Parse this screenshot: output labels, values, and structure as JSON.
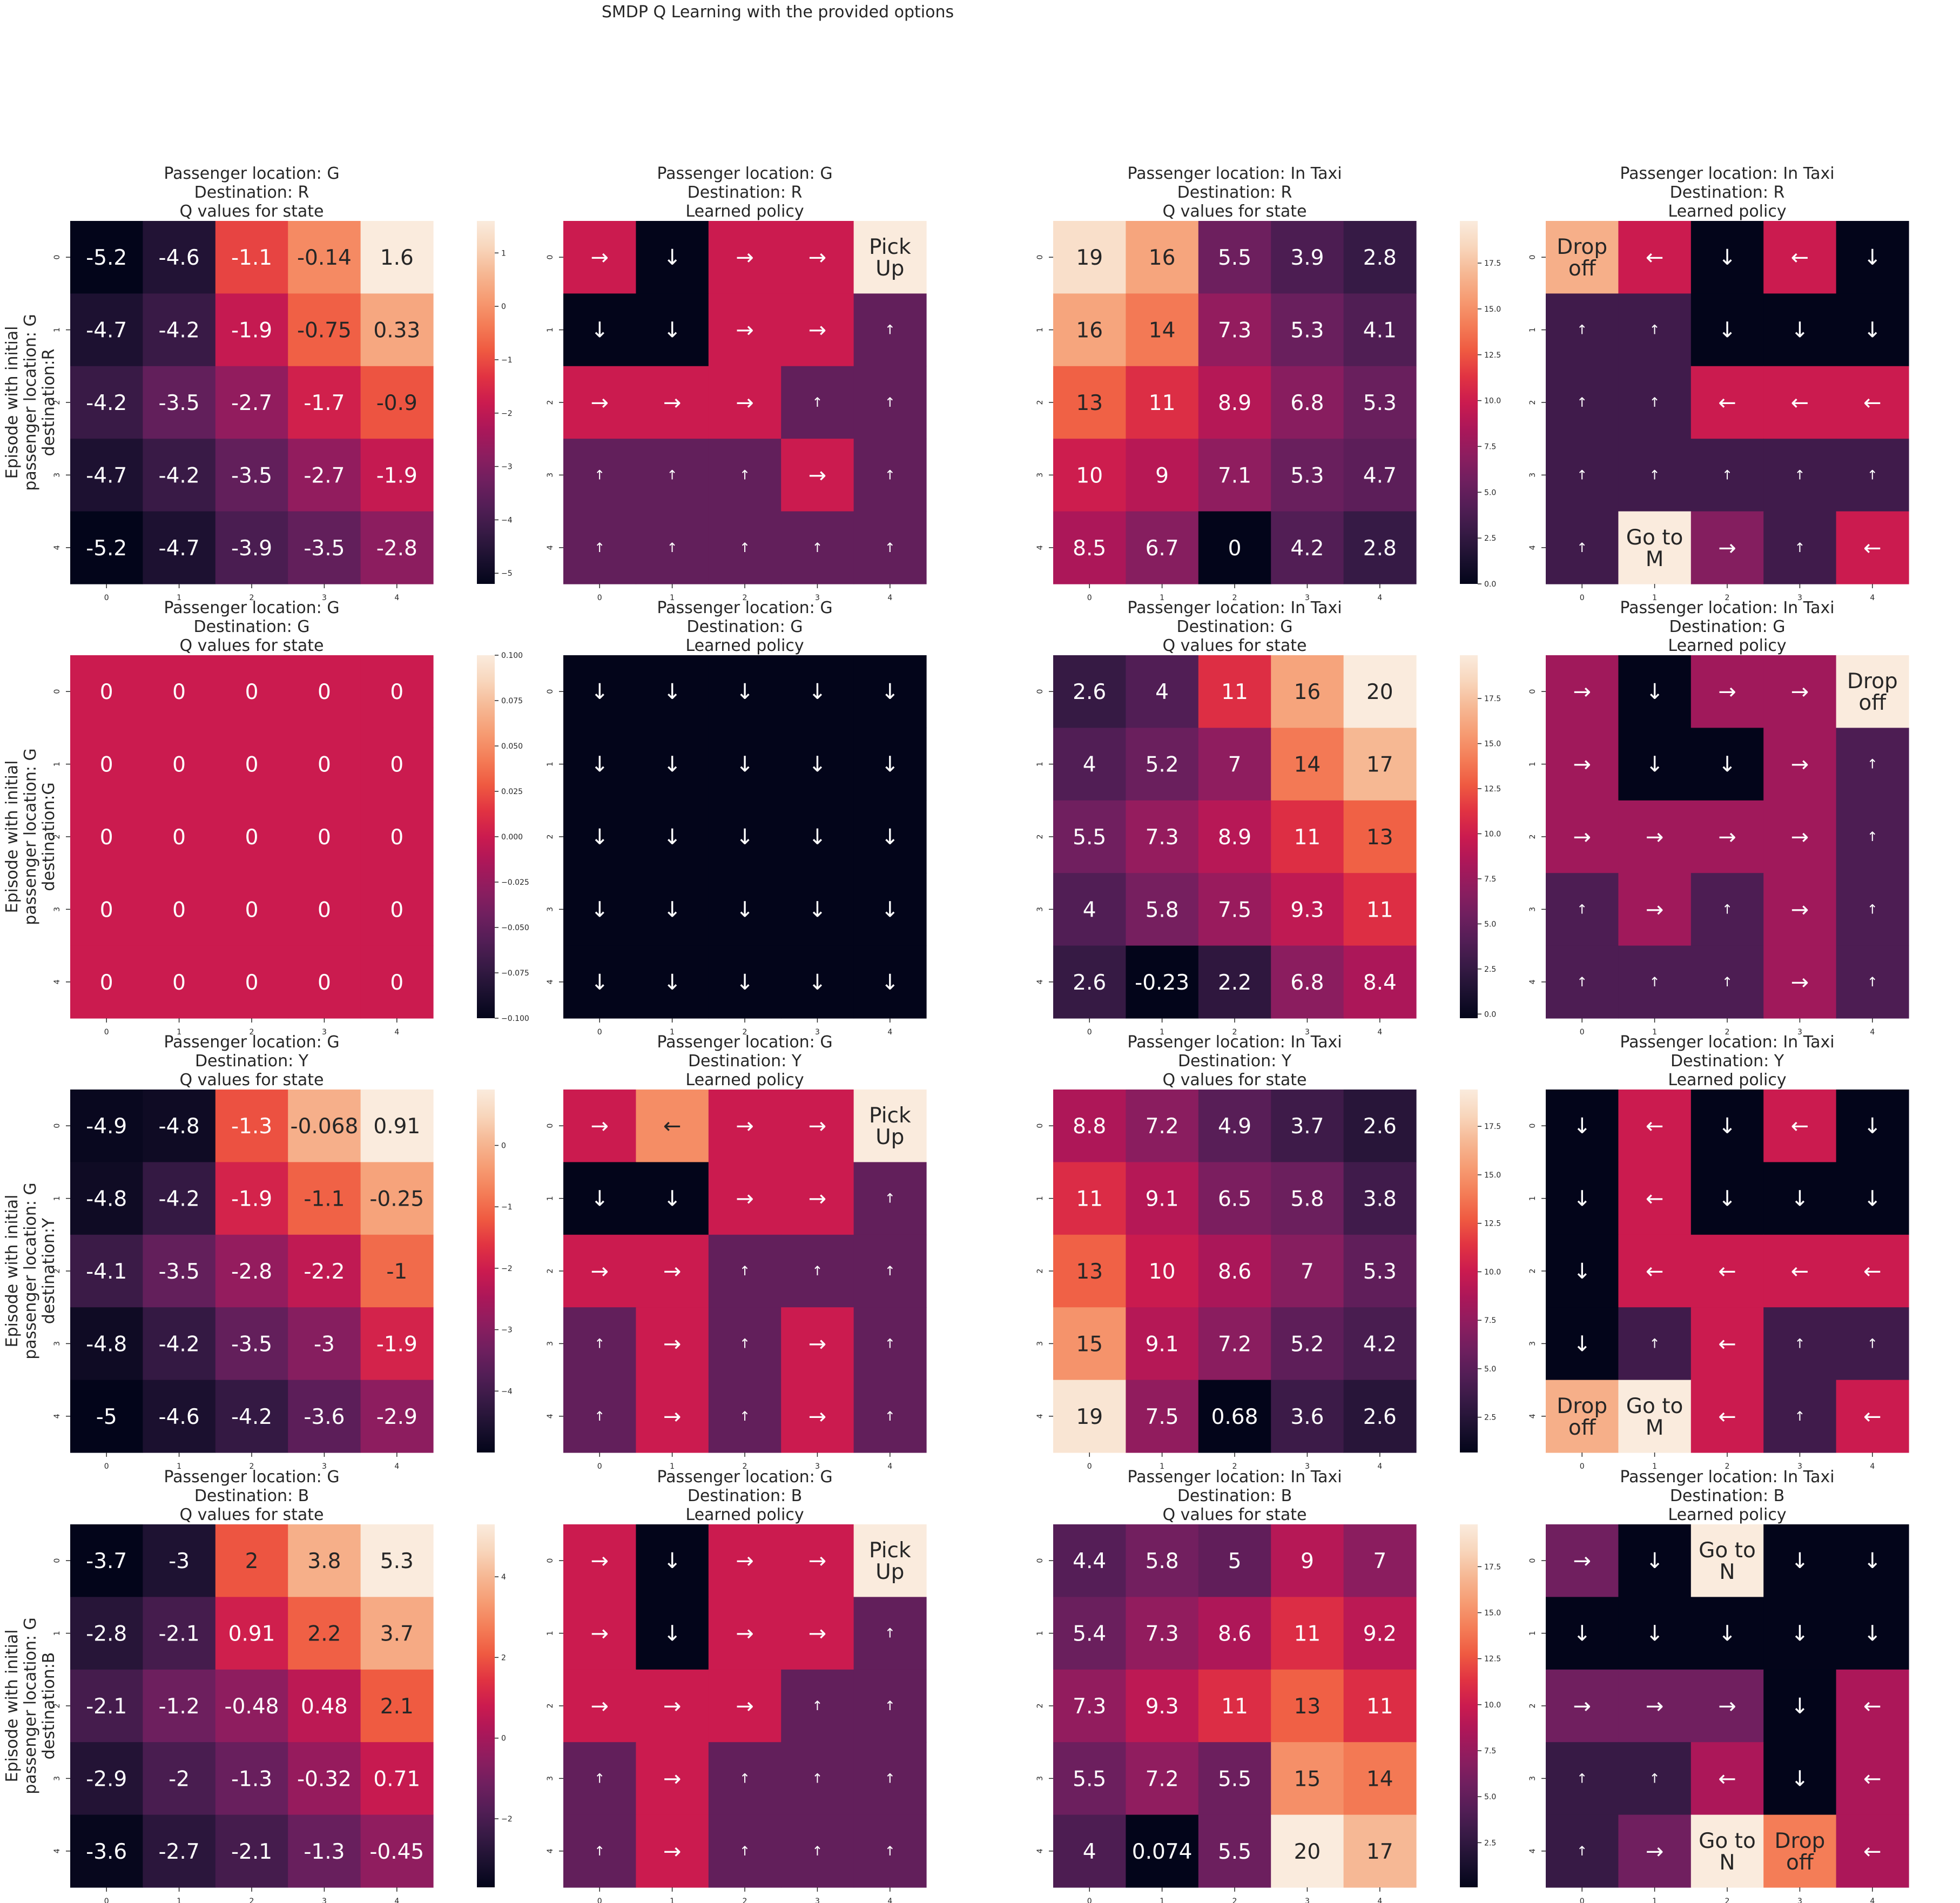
{
  "figure": {
    "suptitle": "SMDP Q Learning with the provided options",
    "row_labels": [
      [
        "Episode with initial",
        "passenger location: G",
        "destination:R"
      ],
      [
        "Episode with initial",
        "passenger location: G",
        "destination:G"
      ],
      [
        "Episode with initial",
        "passenger location: G",
        "destination:Y"
      ],
      [
        "Episode with initial",
        "passenger location: G",
        "destination:B"
      ]
    ],
    "tick_labels": [
      "0",
      "1",
      "2",
      "3",
      "4"
    ],
    "action_glyphs": {
      "0": "↓",
      "1": "↑",
      "2": "→",
      "3": "←",
      "4": [
        "Pick",
        "Up"
      ],
      "5": [
        "Drop",
        "off"
      ],
      "6": [
        "Go to",
        "M"
      ],
      "7": [
        "Go to",
        "N"
      ]
    },
    "colormap": "rocket",
    "text_colors": {
      "on_dark": "#ffffff",
      "on_light": "#262626"
    }
  },
  "chart_data": [
    {
      "type": "heatmap",
      "title": [
        "Passenger location: G",
        "Destination: R",
        "Q values for state"
      ],
      "values": [
        [
          -5.2,
          -4.6,
          -1.1,
          -0.14,
          1.6
        ],
        [
          -4.7,
          -4.2,
          -1.9,
          -0.75,
          0.33
        ],
        [
          -4.2,
          -3.5,
          -2.7,
          -1.7,
          -0.9
        ],
        [
          -4.7,
          -4.2,
          -3.5,
          -2.7,
          -1.9
        ],
        [
          -5.2,
          -4.7,
          -3.9,
          -3.5,
          -2.8
        ]
      ],
      "annotations": [
        [
          "-5.2",
          "-4.6",
          "-1.1",
          "-0.14",
          "1.6"
        ],
        [
          "-4.7",
          "-4.2",
          "-1.9",
          "-0.75",
          "0.33"
        ],
        [
          "-4.2",
          "-3.5",
          "-2.7",
          "-1.7",
          "-0.9"
        ],
        [
          "-4.7",
          "-4.2",
          "-3.5",
          "-2.7",
          "-1.9"
        ],
        [
          "-5.2",
          "-4.7",
          "-3.9",
          "-3.5",
          "-2.8"
        ]
      ],
      "vmin": -5.2,
      "vmax": 1.6,
      "colorbar_ticks": [
        1,
        0,
        -1,
        -2,
        -3,
        -4,
        -5
      ],
      "colorbar_labels": [
        "1",
        "0",
        "−1",
        "−2",
        "−3",
        "−4",
        "−5"
      ]
    },
    {
      "type": "heatmap",
      "title": [
        "Passenger location: G",
        "Destination: R",
        "Learned policy"
      ],
      "values": [
        [
          2,
          0,
          2,
          2,
          4
        ],
        [
          0,
          0,
          2,
          2,
          1
        ],
        [
          2,
          2,
          2,
          1,
          1
        ],
        [
          1,
          1,
          1,
          2,
          1
        ],
        [
          1,
          1,
          1,
          1,
          1
        ]
      ],
      "vmin": 0,
      "vmax": 4
    },
    {
      "type": "heatmap",
      "title": [
        "Passenger location: In Taxi",
        "Destination: R",
        "Q values for state"
      ],
      "values": [
        [
          19,
          16,
          5.5,
          3.9,
          2.8
        ],
        [
          16,
          14,
          7.3,
          5.3,
          4.1
        ],
        [
          13,
          11,
          8.9,
          6.8,
          5.3
        ],
        [
          10,
          9,
          7.1,
          5.3,
          4.7
        ],
        [
          8.5,
          6.7,
          0,
          4.2,
          2.8
        ]
      ],
      "annotations": [
        [
          "19",
          "16",
          "5.5",
          "3.9",
          "2.8"
        ],
        [
          "16",
          "14",
          "7.3",
          "5.3",
          "4.1"
        ],
        [
          "13",
          "11",
          "8.9",
          "6.8",
          "5.3"
        ],
        [
          "10",
          "9",
          "7.1",
          "5.3",
          "4.7"
        ],
        [
          "8.5",
          "6.7",
          "0",
          "4.2",
          "2.8"
        ]
      ],
      "vmin": 0,
      "vmax": 19.8,
      "colorbar_ticks": [
        17.5,
        15,
        12.5,
        10,
        7.5,
        5,
        2.5,
        0
      ],
      "colorbar_labels": [
        "17.5",
        "15.0",
        "12.5",
        "10.0",
        "7.5",
        "5.0",
        "2.5",
        "0.0"
      ]
    },
    {
      "type": "heatmap",
      "title": [
        "Passenger location: In Taxi",
        "Destination: R",
        "Learned policy"
      ],
      "values": [
        [
          5,
          3,
          0,
          3,
          0
        ],
        [
          1,
          1,
          0,
          0,
          0
        ],
        [
          1,
          1,
          3,
          3,
          3
        ],
        [
          1,
          1,
          1,
          1,
          1
        ],
        [
          1,
          6,
          2,
          1,
          3
        ]
      ],
      "vmin": 0,
      "vmax": 6
    },
    {
      "type": "heatmap",
      "title": [
        "Passenger location: G",
        "Destination: G",
        "Q values for state"
      ],
      "values": [
        [
          0,
          0,
          0,
          0,
          0
        ],
        [
          0,
          0,
          0,
          0,
          0
        ],
        [
          0,
          0,
          0,
          0,
          0
        ],
        [
          0,
          0,
          0,
          0,
          0
        ],
        [
          0,
          0,
          0,
          0,
          0
        ]
      ],
      "annotations": [
        [
          "0",
          "0",
          "0",
          "0",
          "0"
        ],
        [
          "0",
          "0",
          "0",
          "0",
          "0"
        ],
        [
          "0",
          "0",
          "0",
          "0",
          "0"
        ],
        [
          "0",
          "0",
          "0",
          "0",
          "0"
        ],
        [
          "0",
          "0",
          "0",
          "0",
          "0"
        ]
      ],
      "vmin": -0.1,
      "vmax": 0.1,
      "colorbar_ticks": [
        0.1,
        0.075,
        0.05,
        0.025,
        0,
        -0.025,
        -0.05,
        -0.075,
        -0.1
      ],
      "colorbar_labels": [
        "0.100",
        "0.075",
        "0.050",
        "0.025",
        "0.000",
        "−0.025",
        "−0.050",
        "−0.075",
        "−0.100"
      ]
    },
    {
      "type": "heatmap",
      "title": [
        "Passenger location: G",
        "Destination: G",
        "Learned policy"
      ],
      "values": [
        [
          0,
          0,
          0,
          0,
          0
        ],
        [
          0,
          0,
          0,
          0,
          0
        ],
        [
          0,
          0,
          0,
          0,
          0
        ],
        [
          0,
          0,
          0,
          0,
          0
        ],
        [
          0,
          0,
          0,
          0,
          0
        ]
      ],
      "vmin": 0,
      "vmax": 0
    },
    {
      "type": "heatmap",
      "title": [
        "Passenger location: In Taxi",
        "Destination: G",
        "Q values for state"
      ],
      "values": [
        [
          2.6,
          4,
          11,
          16,
          20
        ],
        [
          4,
          5.2,
          7,
          14,
          17
        ],
        [
          5.5,
          7.3,
          8.9,
          11,
          13
        ],
        [
          4,
          5.8,
          7.5,
          9.3,
          11
        ],
        [
          2.6,
          -0.23,
          2.2,
          6.8,
          8.4
        ]
      ],
      "annotations": [
        [
          "2.6",
          "4",
          "11",
          "16",
          "20"
        ],
        [
          "4",
          "5.2",
          "7",
          "14",
          "17"
        ],
        [
          "5.5",
          "7.3",
          "8.9",
          "11",
          "13"
        ],
        [
          "4",
          "5.8",
          "7.5",
          "9.3",
          "11"
        ],
        [
          "2.6",
          "-0.23",
          "2.2",
          "6.8",
          "8.4"
        ]
      ],
      "vmin": -0.23,
      "vmax": 19.9,
      "colorbar_ticks": [
        17.5,
        15,
        12.5,
        10,
        7.5,
        5,
        2.5,
        0
      ],
      "colorbar_labels": [
        "17.5",
        "15.0",
        "12.5",
        "10.0",
        "7.5",
        "5.0",
        "2.5",
        "0.0"
      ]
    },
    {
      "type": "heatmap",
      "title": [
        "Passenger location: In Taxi",
        "Destination: G",
        "Learned policy"
      ],
      "values": [
        [
          2,
          0,
          2,
          2,
          5
        ],
        [
          2,
          0,
          0,
          2,
          1
        ],
        [
          2,
          2,
          2,
          2,
          1
        ],
        [
          1,
          2,
          1,
          2,
          1
        ],
        [
          1,
          1,
          1,
          2,
          1
        ]
      ],
      "vmin": 0,
      "vmax": 5
    },
    {
      "type": "heatmap",
      "title": [
        "Passenger location: G",
        "Destination: Y",
        "Q values for state"
      ],
      "values": [
        [
          -4.9,
          -4.8,
          -1.3,
          -0.068,
          0.91
        ],
        [
          -4.8,
          -4.2,
          -1.9,
          -1.1,
          -0.25
        ],
        [
          -4.1,
          -3.5,
          -2.8,
          -2.2,
          -1
        ],
        [
          -4.8,
          -4.2,
          -3.5,
          -3,
          -1.9
        ],
        [
          -5,
          -4.6,
          -4.2,
          -3.6,
          -2.9
        ]
      ],
      "annotations": [
        [
          "-4.9",
          "-4.8",
          "-1.3",
          "-0.068",
          "0.91"
        ],
        [
          "-4.8",
          "-4.2",
          "-1.9",
          "-1.1",
          "-0.25"
        ],
        [
          "-4.1",
          "-3.5",
          "-2.8",
          "-2.2",
          "-1"
        ],
        [
          "-4.8",
          "-4.2",
          "-3.5",
          "-3",
          "-1.9"
        ],
        [
          "-5",
          "-4.6",
          "-4.2",
          "-3.6",
          "-2.9"
        ]
      ],
      "vmin": -5.0,
      "vmax": 0.91,
      "colorbar_ticks": [
        0,
        -1,
        -2,
        -3,
        -4
      ],
      "colorbar_labels": [
        "0",
        "−1",
        "−2",
        "−3",
        "−4"
      ]
    },
    {
      "type": "heatmap",
      "title": [
        "Passenger location: G",
        "Destination: Y",
        "Learned policy"
      ],
      "values": [
        [
          2,
          3,
          2,
          2,
          4
        ],
        [
          0,
          0,
          2,
          2,
          1
        ],
        [
          2,
          2,
          1,
          1,
          1
        ],
        [
          1,
          2,
          1,
          2,
          1
        ],
        [
          1,
          2,
          1,
          2,
          1
        ]
      ],
      "vmin": 0,
      "vmax": 4
    },
    {
      "type": "heatmap",
      "title": [
        "Passenger location: In Taxi",
        "Destination: Y",
        "Q values for state"
      ],
      "values": [
        [
          8.8,
          7.2,
          4.9,
          3.7,
          2.6
        ],
        [
          11,
          9.1,
          6.5,
          5.8,
          3.8
        ],
        [
          13,
          10,
          8.6,
          7,
          5.3
        ],
        [
          15,
          9.1,
          7.2,
          5.2,
          4.2
        ],
        [
          19,
          7.5,
          0.68,
          3.6,
          2.6
        ]
      ],
      "annotations": [
        [
          "8.8",
          "7.2",
          "4.9",
          "3.7",
          "2.6"
        ],
        [
          "11",
          "9.1",
          "6.5",
          "5.8",
          "3.8"
        ],
        [
          "13",
          "10",
          "8.6",
          "7",
          "5.3"
        ],
        [
          "15",
          "9.1",
          "7.2",
          "5.2",
          "4.2"
        ],
        [
          "19",
          "7.5",
          "0.68",
          "3.6",
          "2.6"
        ]
      ],
      "vmin": 0.68,
      "vmax": 19.4,
      "colorbar_ticks": [
        17.5,
        15,
        12.5,
        10,
        7.5,
        5,
        2.5
      ],
      "colorbar_labels": [
        "17.5",
        "15.0",
        "12.5",
        "10.0",
        "7.5",
        "5.0",
        "2.5"
      ]
    },
    {
      "type": "heatmap",
      "title": [
        "Passenger location: In Taxi",
        "Destination: Y",
        "Learned policy"
      ],
      "values": [
        [
          0,
          3,
          0,
          3,
          0
        ],
        [
          0,
          3,
          0,
          0,
          0
        ],
        [
          0,
          3,
          3,
          3,
          3
        ],
        [
          0,
          1,
          3,
          1,
          1
        ],
        [
          5,
          6,
          3,
          1,
          3
        ]
      ],
      "vmin": 0,
      "vmax": 6
    },
    {
      "type": "heatmap",
      "title": [
        "Passenger location: G",
        "Destination: B",
        "Q values for state"
      ],
      "values": [
        [
          -3.7,
          -3,
          2,
          3.8,
          5.3
        ],
        [
          -2.8,
          -2.1,
          0.91,
          2.2,
          3.7
        ],
        [
          -2.1,
          -1.2,
          -0.48,
          0.48,
          2.1
        ],
        [
          -2.9,
          -2,
          -1.3,
          -0.32,
          0.71
        ],
        [
          -3.6,
          -2.7,
          -2.1,
          -1.3,
          -0.45
        ]
      ],
      "annotations": [
        [
          "-3.7",
          "-3",
          "2",
          "3.8",
          "5.3"
        ],
        [
          "-2.8",
          "-2.1",
          "0.91",
          "2.2",
          "3.7"
        ],
        [
          "-2.1",
          "-1.2",
          "-0.48",
          "0.48",
          "2.1"
        ],
        [
          "-2.9",
          "-2",
          "-1.3",
          "-0.32",
          "0.71"
        ],
        [
          "-3.6",
          "-2.7",
          "-2.1",
          "-1.3",
          "-0.45"
        ]
      ],
      "vmin": -3.7,
      "vmax": 5.3,
      "colorbar_ticks": [
        4,
        2,
        0,
        -2
      ],
      "colorbar_labels": [
        "4",
        "2",
        "0",
        "−2"
      ]
    },
    {
      "type": "heatmap",
      "title": [
        "Passenger location: G",
        "Destination: B",
        "Learned policy"
      ],
      "values": [
        [
          2,
          0,
          2,
          2,
          4
        ],
        [
          2,
          0,
          2,
          2,
          1
        ],
        [
          2,
          2,
          2,
          1,
          1
        ],
        [
          1,
          2,
          1,
          1,
          1
        ],
        [
          1,
          2,
          1,
          1,
          1
        ]
      ],
      "vmin": 0,
      "vmax": 4
    },
    {
      "type": "heatmap",
      "title": [
        "Passenger location: In Taxi",
        "Destination: B",
        "Q values for state"
      ],
      "values": [
        [
          4.4,
          5.8,
          5,
          9,
          7
        ],
        [
          5.4,
          7.3,
          8.6,
          11,
          9.2
        ],
        [
          7.3,
          9.3,
          11,
          13,
          11
        ],
        [
          5.5,
          7.2,
          5.5,
          15,
          14
        ],
        [
          4,
          0.074,
          5.5,
          20,
          17
        ]
      ],
      "annotations": [
        [
          "4.4",
          "5.8",
          "5",
          "9",
          "7"
        ],
        [
          "5.4",
          "7.3",
          "8.6",
          "11",
          "9.2"
        ],
        [
          "7.3",
          "9.3",
          "11",
          "13",
          "11"
        ],
        [
          "5.5",
          "7.2",
          "5.5",
          "15",
          "14"
        ],
        [
          "4",
          "0.074",
          "5.5",
          "20",
          "17"
        ]
      ],
      "vmin": 0.074,
      "vmax": 19.8,
      "colorbar_ticks": [
        17.5,
        15,
        12.5,
        10,
        7.5,
        5,
        2.5
      ],
      "colorbar_labels": [
        "17.5",
        "15.0",
        "12.5",
        "10.0",
        "7.5",
        "5.0",
        "2.5"
      ]
    },
    {
      "type": "heatmap",
      "title": [
        "Passenger location: In Taxi",
        "Destination: B",
        "Learned policy"
      ],
      "values": [
        [
          2,
          0,
          7,
          0,
          0
        ],
        [
          0,
          0,
          0,
          0,
          0
        ],
        [
          2,
          2,
          2,
          0,
          3
        ],
        [
          1,
          1,
          3,
          0,
          3
        ],
        [
          1,
          2,
          7,
          5,
          3
        ]
      ],
      "vmin": 0,
      "vmax": 7
    }
  ]
}
